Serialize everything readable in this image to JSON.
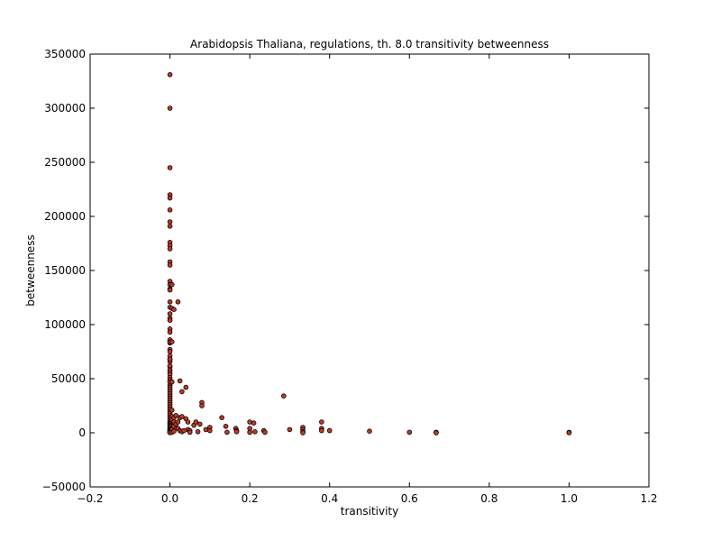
{
  "chart_data": {
    "type": "scatter",
    "title": "Arabidopsis Thaliana, regulations, th. 8.0 transitivity betweenness",
    "xlabel": "transitivity",
    "ylabel": "betweenness",
    "xlim": [
      -0.2,
      1.2
    ],
    "ylim": [
      -50000,
      350000
    ],
    "xticks": [
      -0.2,
      0.0,
      0.2,
      0.4,
      0.6,
      0.8,
      1.0,
      1.2
    ],
    "xtick_labels": [
      "−0.2",
      "0.0",
      "0.2",
      "0.4",
      "0.6",
      "0.8",
      "1.0",
      "1.2"
    ],
    "yticks": [
      -50000,
      0,
      50000,
      100000,
      150000,
      200000,
      250000,
      300000,
      350000
    ],
    "ytick_labels": [
      "−50000",
      "0",
      "50000",
      "100000",
      "150000",
      "200000",
      "250000",
      "300000",
      "350000"
    ],
    "grid": false,
    "marker_color": "#c0392b",
    "marker_edge_color": "#000000",
    "x": [
      0.0,
      0.0,
      0.0,
      0.0,
      0.0,
      0.0,
      0.0,
      0.0,
      0.0,
      0.0,
      0.0,
      0.0,
      0.0,
      0.0,
      0.0,
      0.0,
      0.0,
      0.0,
      0.0,
      0.0,
      0.0,
      0.0,
      0.0,
      0.0,
      0.0,
      0.0,
      0.0,
      0.0,
      0.0,
      0.0,
      0.0,
      0.0,
      0.0,
      0.0,
      0.0,
      0.0,
      0.0,
      0.0,
      0.0,
      0.0,
      0.0,
      0.0,
      0.0,
      0.0,
      0.0,
      0.0,
      0.0,
      0.0,
      0.0,
      0.0,
      0.0,
      0.0,
      0.0,
      0.0,
      0.0,
      0.0,
      0.0,
      0.0,
      0.0,
      0.0,
      0.0,
      0.0,
      0.0,
      0.0,
      0.0,
      0.0,
      0.0,
      0.0,
      0.0,
      0.0,
      0.0,
      0.0,
      0.0,
      0.0,
      0.0,
      0.0,
      0.005,
      0.005,
      0.005,
      0.005,
      0.005,
      0.005,
      0.005,
      0.005,
      0.005,
      0.01,
      0.01,
      0.01,
      0.01,
      0.01,
      0.015,
      0.015,
      0.02,
      0.02,
      0.02,
      0.025,
      0.025,
      0.025,
      0.03,
      0.03,
      0.03,
      0.035,
      0.04,
      0.04,
      0.045,
      0.045,
      0.05,
      0.05,
      0.06,
      0.065,
      0.07,
      0.075,
      0.08,
      0.08,
      0.09,
      0.1,
      0.1,
      0.13,
      0.14,
      0.143,
      0.165,
      0.167,
      0.167,
      0.2,
      0.2,
      0.2,
      0.21,
      0.213,
      0.235,
      0.238,
      0.285,
      0.3,
      0.333,
      0.333,
      0.333,
      0.333,
      0.38,
      0.38,
      0.38,
      0.4,
      0.5,
      0.6,
      0.667,
      0.667,
      1.0,
      1.0
    ],
    "y": [
      331000,
      300000,
      245000,
      220000,
      217000,
      206000,
      195000,
      191000,
      176000,
      173000,
      170000,
      158000,
      155000,
      140000,
      137000,
      133000,
      132000,
      121000,
      116000,
      106000,
      104000,
      96000,
      93000,
      85000,
      83000,
      77000,
      75000,
      71000,
      68000,
      66000,
      61000,
      58000,
      56000,
      54000,
      51000,
      49000,
      47000,
      44000,
      42000,
      40000,
      38000,
      36000,
      34000,
      32000,
      30000,
      28000,
      26000,
      24000,
      22000,
      20000,
      18000,
      16000,
      14000,
      12000,
      10000,
      9000,
      8000,
      7000,
      6000,
      5000,
      4000,
      3000,
      2500,
      2000,
      1500,
      1000,
      700,
      500,
      300,
      100,
      86000,
      68000,
      62000,
      47000,
      110000,
      84000,
      137000,
      115000,
      84000,
      47000,
      21000,
      15000,
      12000,
      3000,
      500,
      114000,
      14000,
      10000,
      6000,
      1500,
      16000,
      8000,
      121000,
      10000,
      4000,
      48000,
      14000,
      2000,
      38000,
      15000,
      1000,
      2000,
      42000,
      13000,
      10000,
      3000,
      2000,
      500,
      7000,
      10000,
      1000,
      8000,
      28000,
      25000,
      3000,
      5000,
      2000,
      14000,
      6000,
      500,
      4000,
      2000,
      1000,
      10000,
      4000,
      500,
      9000,
      1000,
      2000,
      500,
      34000,
      3000,
      5000,
      3000,
      1000,
      0,
      10000,
      4000,
      2000,
      2000,
      1500,
      500,
      500,
      0,
      500,
      0
    ]
  }
}
